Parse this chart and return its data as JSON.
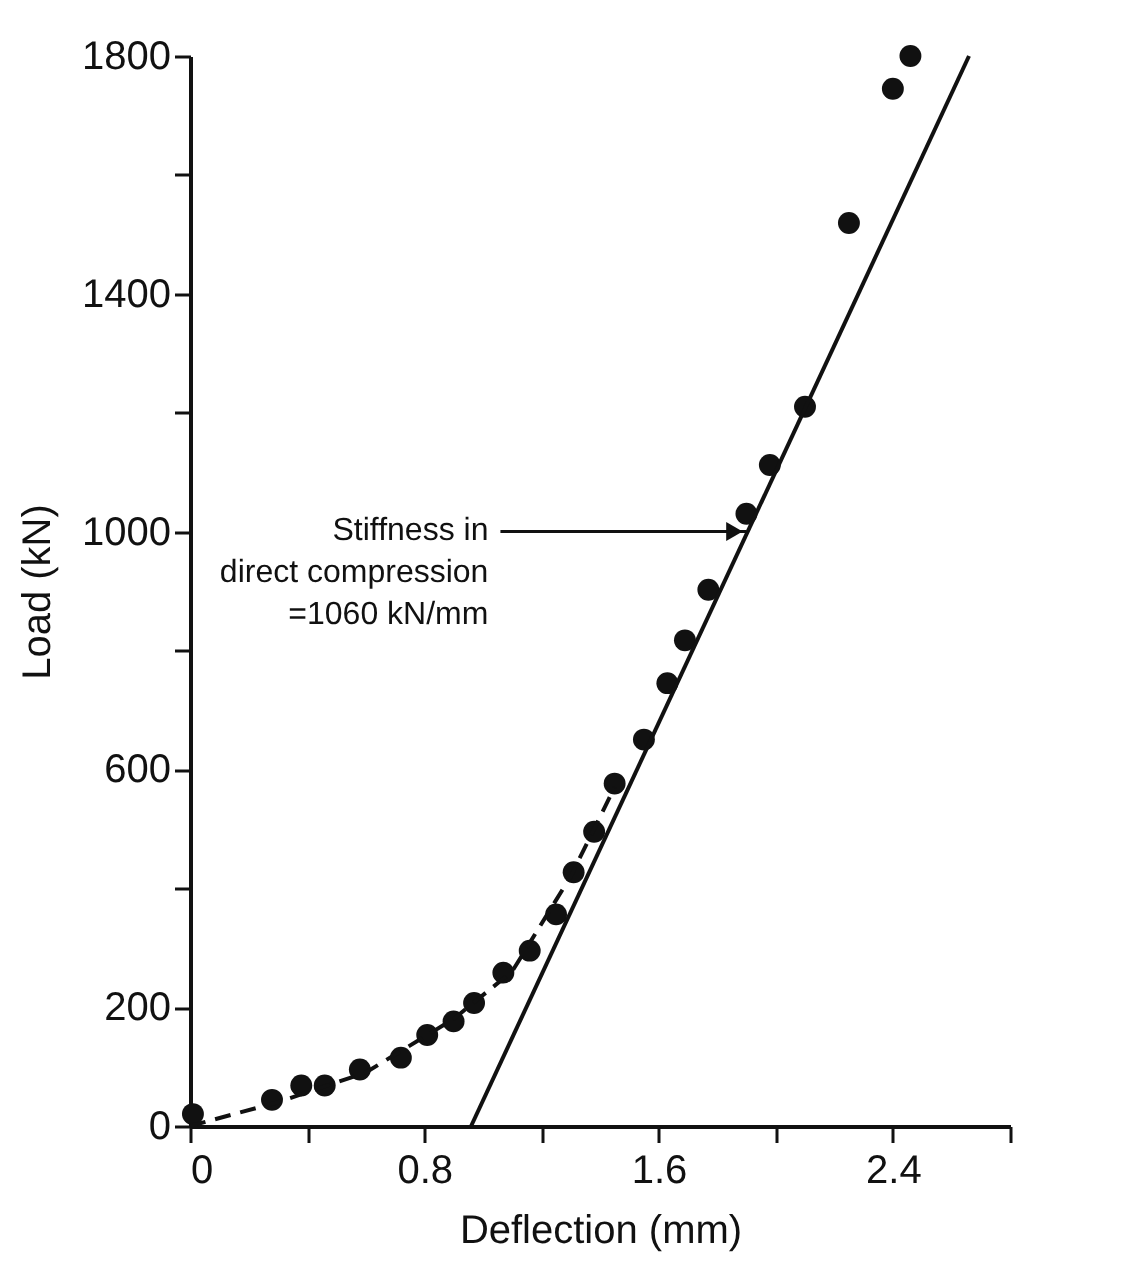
{
  "chart_data": {
    "type": "scatter",
    "xlabel": "Deflection (mm)",
    "ylabel": "Load (kN)",
    "xlim": [
      0,
      2.8
    ],
    "ylim": [
      0,
      1800
    ],
    "xticks": [
      0,
      {
        "value": 0.4,
        "label": null
      },
      0.8,
      {
        "value": 1.2,
        "label": null
      },
      1.6,
      {
        "value": 2.0,
        "label": null
      },
      2.4,
      {
        "value": 2.8,
        "label": null
      }
    ],
    "yticks": [
      0,
      200,
      {
        "value": 400,
        "label": null
      },
      600,
      {
        "value": 800,
        "label": null
      },
      1000,
      {
        "value": 1200,
        "label": null
      },
      1400,
      {
        "value": 1600,
        "label": null
      },
      1800
    ],
    "grid": false,
    "marker": "circle",
    "series": [
      {
        "color": "#111111",
        "x": [
          0.01,
          0.28,
          0.38,
          0.46,
          0.58,
          0.72,
          0.81,
          0.9,
          0.97,
          1.07,
          1.16,
          1.25,
          1.31,
          1.38,
          1.45,
          1.55,
          1.63,
          1.69,
          1.77,
          1.9,
          1.98,
          2.1,
          2.25,
          2.4,
          2.46
        ],
        "values": [
          20,
          44,
          68,
          68,
          95,
          115,
          153,
          176,
          207,
          258,
          295,
          356,
          427,
          495,
          576,
          650,
          745,
          817,
          902,
          1030,
          1112,
          1210,
          1519,
          1745,
          1800
        ]
      },
      {
        "type": "line",
        "color": "#111111",
        "line_style": "dashed",
        "marker": "none",
        "x": [
          0,
          0.3,
          0.6,
          0.9,
          1.1,
          1.3,
          1.45
        ],
        "values": [
          0,
          40,
          90,
          180,
          260,
          420,
          570
        ]
      },
      {
        "type": "line",
        "color": "#111111",
        "line_style": "solid",
        "marker": "none",
        "x": [
          0.96,
          2.66
        ],
        "values": [
          0,
          1800
        ]
      }
    ],
    "annotations": [
      {
        "text": "Stiffness in\ndirect compression\n=1060 kN/mm",
        "x": 1.9,
        "y": 1000
      }
    ]
  }
}
